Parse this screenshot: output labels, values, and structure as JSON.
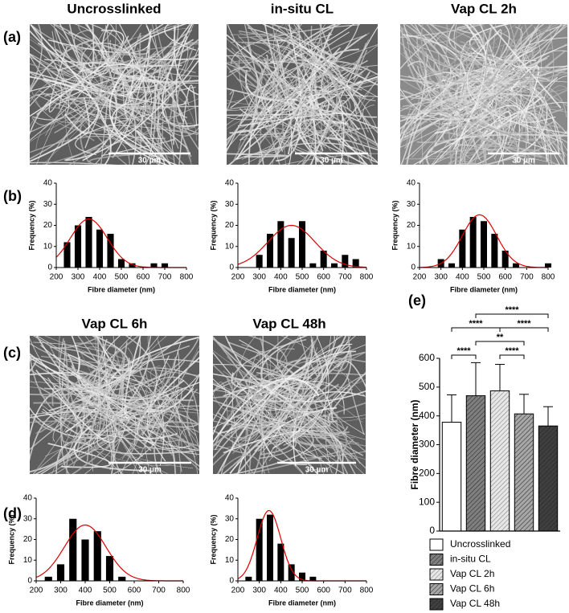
{
  "panel_labels": [
    "(a)",
    "(b)",
    "(c)",
    "(d)",
    "(e)"
  ],
  "images": [
    {
      "title": "Uncrosslinked",
      "scale_bar": "30 µm"
    },
    {
      "title": "in-situ CL",
      "scale_bar": "30 µm"
    },
    {
      "title": "Vap CL 2h",
      "scale_bar": "30 µm"
    },
    {
      "title": "Vap CL 6h",
      "scale_bar": "30 µm"
    },
    {
      "title": "Vap CL 48h",
      "scale_bar": "30 µm"
    }
  ],
  "chart_data": [
    {
      "type": "histogram",
      "xlabel": "Fibre diameter (nm)",
      "ylabel": "Frequency (%)",
      "bins": [
        225,
        275,
        325,
        375,
        425,
        475,
        525,
        575,
        625,
        675,
        725
      ],
      "values": [
        12,
        20,
        24,
        18,
        16,
        4,
        2,
        0,
        2,
        2
      ],
      "color": "#000000",
      "fit": {
        "mean": 350,
        "sd": 85,
        "amplitude": 23,
        "color": "#e00000"
      },
      "xlim": [
        200,
        800
      ],
      "xticks": [
        200,
        300,
        400,
        500,
        600,
        700,
        800
      ],
      "ylim": [
        0,
        40
      ],
      "yticks": [
        0,
        10,
        20,
        30,
        40
      ]
    },
    {
      "type": "histogram",
      "xlabel": "Fibre diameter (nm)",
      "ylabel": "Frequency (%)",
      "bins": [
        275,
        325,
        375,
        425,
        475,
        525,
        575,
        625,
        675,
        725,
        775
      ],
      "values": [
        6,
        16,
        22,
        14,
        22,
        2,
        8,
        2,
        6,
        4
      ],
      "color": "#000000",
      "fit": {
        "mean": 450,
        "sd": 110,
        "amplitude": 20,
        "color": "#e00000"
      },
      "xlim": [
        200,
        800
      ],
      "xticks": [
        200,
        300,
        400,
        500,
        600,
        700,
        800
      ],
      "ylim": [
        0,
        40
      ],
      "yticks": [
        0,
        10,
        20,
        30,
        40
      ]
    },
    {
      "type": "histogram",
      "xlabel": "Fibre diameter (nm)",
      "ylabel": "Frequency (%)",
      "bins": [
        275,
        325,
        375,
        425,
        475,
        525,
        575,
        625,
        675,
        725,
        775,
        825
      ],
      "values": [
        4,
        2,
        18,
        24,
        22,
        16,
        8,
        2,
        0,
        0,
        2
      ],
      "color": "#000000",
      "fit": {
        "mean": 480,
        "sd": 80,
        "amplitude": 25,
        "color": "#e00000"
      },
      "xlim": [
        200,
        800
      ],
      "xticks": [
        200,
        300,
        400,
        500,
        600,
        700,
        800
      ],
      "ylim": [
        0,
        40
      ],
      "yticks": [
        0,
        10,
        20,
        30,
        40
      ]
    },
    {
      "type": "histogram",
      "xlabel": "Fibre diameter (nm)",
      "ylabel": "Frequency (%)",
      "bins": [
        225,
        275,
        325,
        375,
        425,
        475,
        525,
        575
      ],
      "values": [
        2,
        8,
        30,
        20,
        24,
        12,
        2
      ],
      "color": "#000000",
      "fit": {
        "mean": 400,
        "sd": 85,
        "amplitude": 27,
        "color": "#e00000"
      },
      "xlim": [
        200,
        800
      ],
      "xticks": [
        200,
        300,
        400,
        500,
        600,
        700,
        800
      ],
      "ylim": [
        0,
        40
      ],
      "yticks": [
        0,
        10,
        20,
        30,
        40
      ]
    },
    {
      "type": "histogram",
      "xlabel": "Fibre diameter (nm)",
      "ylabel": "Frequency (%)",
      "bins": [
        225,
        275,
        325,
        375,
        425,
        475,
        525,
        575
      ],
      "values": [
        2,
        30,
        32,
        18,
        8,
        4,
        2
      ],
      "color": "#000000",
      "fit": {
        "mean": 345,
        "sd": 55,
        "amplitude": 34,
        "color": "#e00000"
      },
      "xlim": [
        200,
        800
      ],
      "xticks": [
        200,
        300,
        400,
        500,
        600,
        700,
        800
      ],
      "ylim": [
        0,
        40
      ],
      "yticks": [
        0,
        10,
        20,
        30,
        40
      ]
    },
    {
      "type": "bar",
      "ylabel": "Fibre diameter  (nm)",
      "categories": [
        "Uncrosslinked",
        "in-situ CL",
        "Vap CL 2h",
        "Vap CL 6h",
        "Vap CL 48h"
      ],
      "values": [
        378,
        470,
        487,
        407,
        365
      ],
      "errors": [
        95,
        115,
        92,
        68,
        67
      ],
      "colors": [
        "#ffffff",
        "#7f7f7f",
        "#e6e6e6",
        "#a6a6a6",
        "#3f3f3f"
      ],
      "hatched": [
        false,
        true,
        true,
        true,
        true
      ],
      "ylim": [
        0,
        600
      ],
      "yticks": [
        0,
        100,
        200,
        300,
        400,
        500,
        600
      ],
      "significance": [
        {
          "from": 0,
          "to": 1,
          "label": "****"
        },
        {
          "from": 2,
          "to": 3,
          "label": "****"
        },
        {
          "from": 1,
          "to": 3,
          "label": "**"
        },
        {
          "from": 0,
          "to": 2,
          "label": "****"
        },
        {
          "from": 2,
          "to": 4,
          "label": "****"
        },
        {
          "from": 1,
          "to": 4,
          "label": "****"
        }
      ]
    }
  ]
}
